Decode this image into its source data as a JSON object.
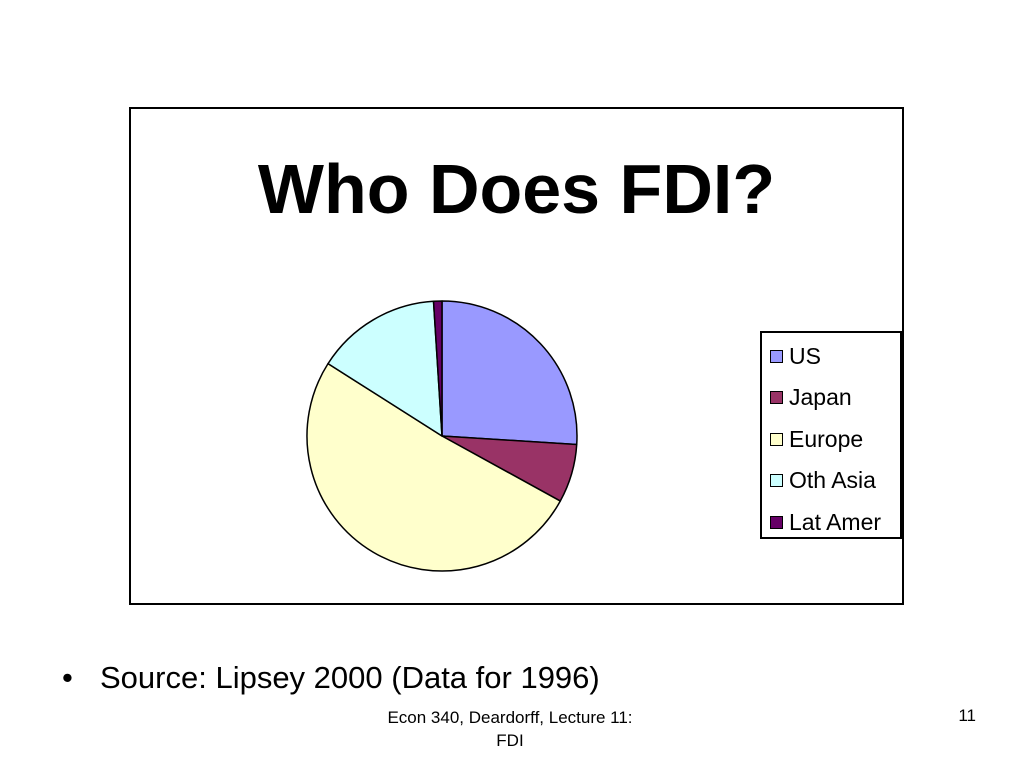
{
  "chart_data": {
    "type": "pie",
    "title": "Who Does FDI?",
    "categories": [
      "US",
      "Japan",
      "Europe",
      "Oth Asia",
      "Lat Amer"
    ],
    "values": [
      26,
      7,
      51,
      15,
      1
    ],
    "colors": [
      "#9999ff",
      "#993366",
      "#ffffcc",
      "#ccffff",
      "#660066"
    ],
    "start_angle_deg": 0,
    "direction": "clockwise",
    "legend": "right"
  },
  "slide": {
    "bullet": "•",
    "source": "Source:  Lipsey 2000 (Data for 1996)",
    "footer_line1": "Econ 340, Deardorff, Lecture 11:",
    "footer_line2": "FDI",
    "page_number": "11"
  }
}
